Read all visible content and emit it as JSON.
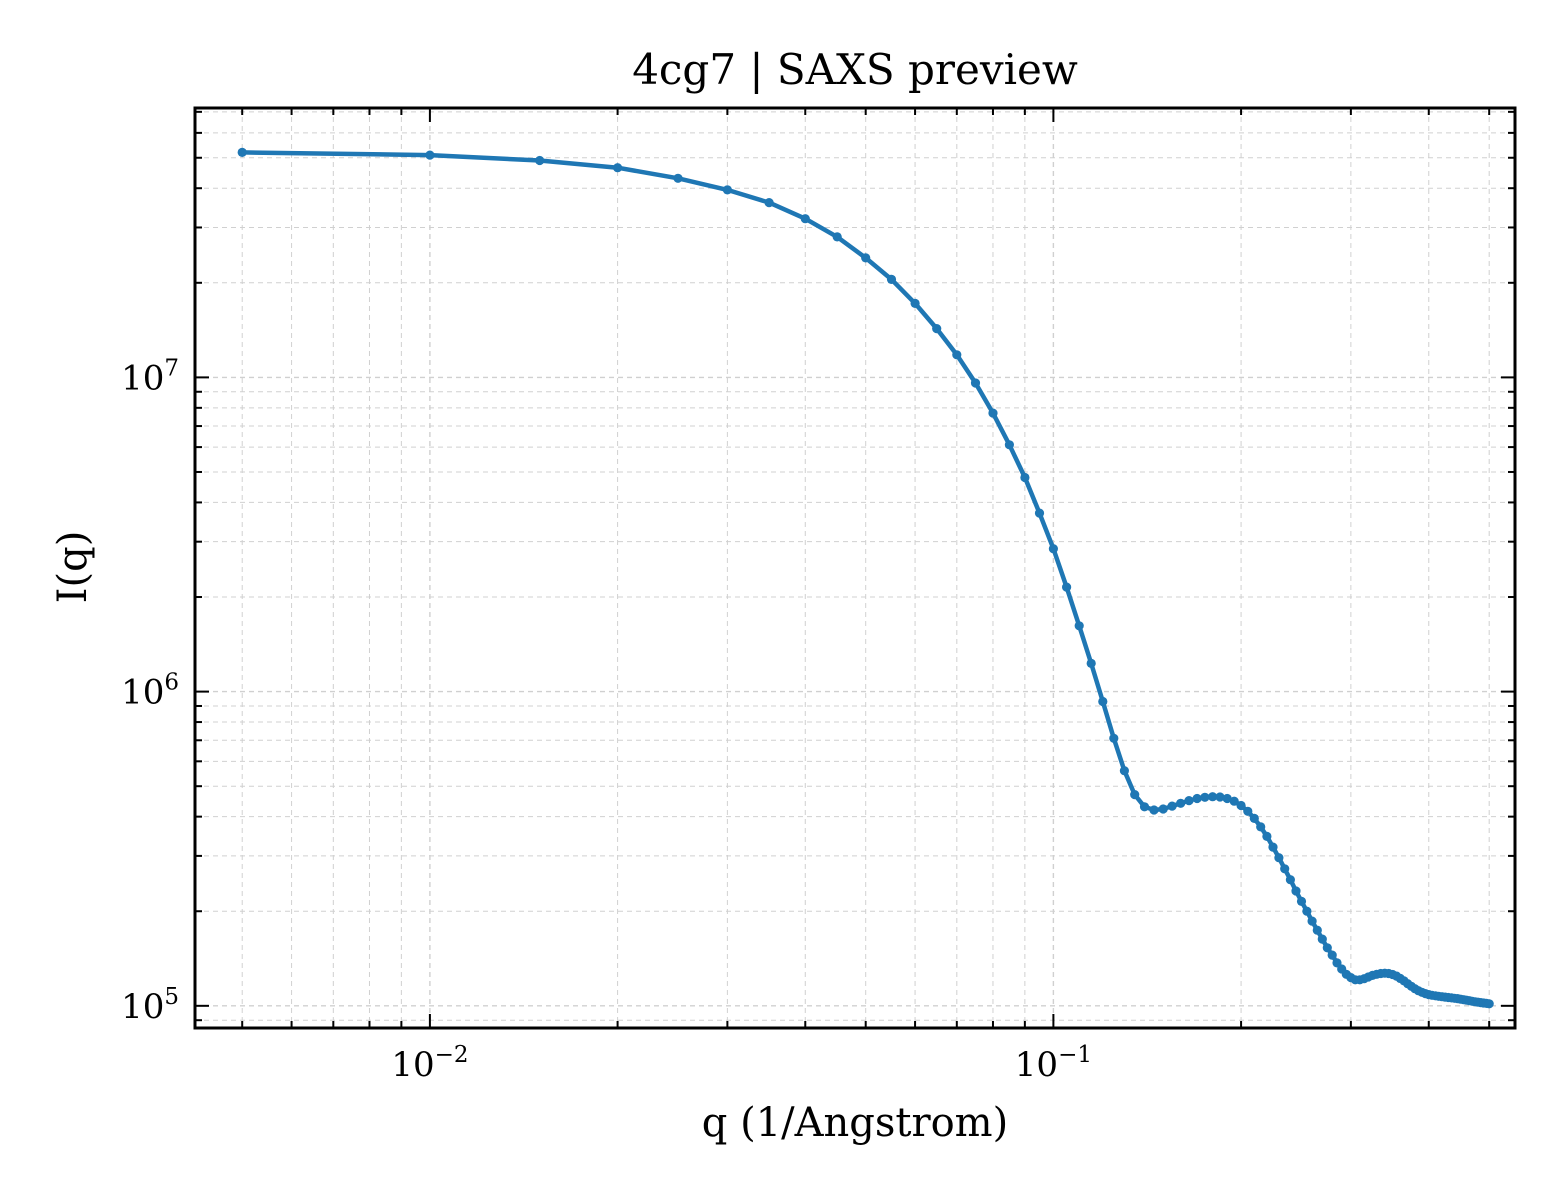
{
  "chart_data": {
    "type": "line",
    "title": "4cg7 | SAXS preview",
    "xlabel": "q (1/Angstrom)",
    "ylabel": "I(q)",
    "xscale": "log",
    "yscale": "log",
    "xlim": [
      0.0042,
      0.55
    ],
    "ylim": [
      85000,
      72000000
    ],
    "grid": true,
    "legend": "none",
    "line_color": "#1f77b4",
    "x_ticks": [
      {
        "value": 0.01,
        "base": "10",
        "exp": "−2"
      },
      {
        "value": 0.1,
        "base": "10",
        "exp": "−1"
      }
    ],
    "y_ticks": [
      {
        "value": 100000,
        "base": "10",
        "exp": "5"
      },
      {
        "value": 1000000,
        "base": "10",
        "exp": "6"
      },
      {
        "value": 10000000,
        "base": "10",
        "exp": "7"
      }
    ],
    "series": [
      {
        "x": [
          0.005,
          0.01,
          0.015,
          0.02,
          0.025,
          0.03,
          0.035,
          0.04,
          0.045,
          0.05,
          0.055,
          0.06,
          0.065,
          0.07,
          0.075,
          0.08,
          0.085,
          0.09,
          0.095,
          0.1,
          0.105,
          0.11,
          0.115,
          0.12,
          0.125,
          0.13,
          0.135,
          0.14,
          0.145,
          0.15,
          0.155,
          0.16,
          0.165,
          0.17,
          0.175,
          0.18,
          0.185,
          0.19,
          0.195,
          0.2,
          0.205,
          0.21,
          0.215,
          0.22,
          0.225,
          0.23,
          0.235,
          0.24,
          0.245,
          0.25,
          0.255,
          0.26,
          0.265,
          0.27,
          0.275,
          0.28,
          0.285,
          0.29,
          0.295,
          0.3,
          0.305,
          0.31,
          0.315,
          0.32,
          0.325,
          0.33,
          0.335,
          0.34,
          0.345,
          0.35,
          0.355,
          0.36,
          0.365,
          0.37,
          0.375,
          0.38,
          0.385,
          0.39,
          0.395,
          0.4,
          0.405,
          0.41,
          0.415,
          0.42,
          0.425,
          0.43,
          0.435,
          0.44,
          0.445,
          0.45,
          0.455,
          0.46,
          0.465,
          0.47,
          0.475,
          0.48,
          0.485,
          0.49,
          0.495,
          0.5
        ],
        "y": [
          52000000,
          51000000,
          49000000,
          46500000,
          43000000,
          39500000,
          36000000,
          32000000,
          28000000,
          24000000,
          20500000,
          17200000,
          14300000,
          11800000,
          9600000,
          7700000,
          6100000,
          4800000,
          3700000,
          2850000,
          2150000,
          1620000,
          1230000,
          930000,
          710000,
          560000,
          470000,
          430000,
          420000,
          423000,
          432000,
          441000,
          450000,
          457000,
          461000,
          463000,
          462000,
          457000,
          448000,
          434000,
          416000,
          395000,
          371000,
          346000,
          320000,
          296000,
          273000,
          252000,
          232000,
          215000,
          200000,
          186000,
          174000,
          163000,
          153000,
          145000,
          137000,
          131000,
          126000,
          123000,
          121000,
          121000,
          122000,
          123500,
          125000,
          126000,
          126700,
          127000,
          126700,
          125800,
          124300,
          122300,
          120000,
          117600,
          115400,
          113400,
          111700,
          110400,
          109400,
          108600,
          108000,
          107600,
          107200,
          106900,
          106600,
          106300,
          106000,
          105700,
          105400,
          105000,
          104600,
          104200,
          103800,
          103400,
          103000,
          102700,
          102400,
          102100,
          101800,
          101500
        ]
      }
    ]
  }
}
